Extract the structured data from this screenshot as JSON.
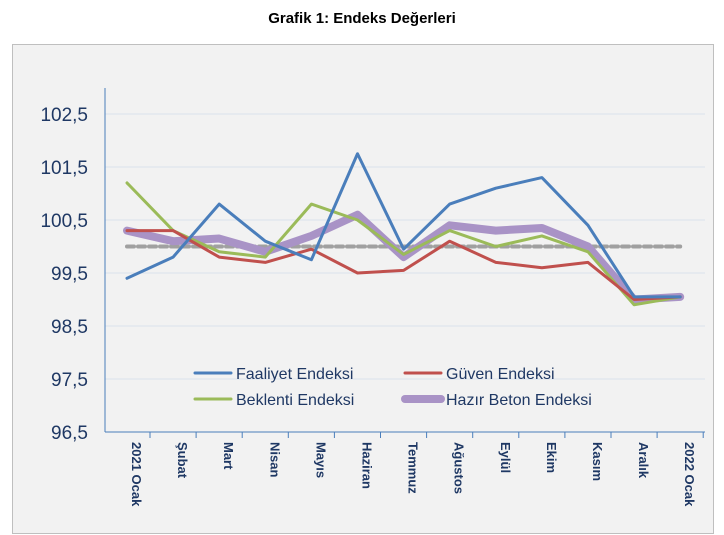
{
  "chart_data": {
    "type": "line",
    "title": "Grafik 1: Endeks Değerleri",
    "categories": [
      "2021 Ocak",
      "Şubat",
      "Mart",
      "Nisan",
      "Mayıs",
      "Haziran",
      "Temmuz",
      "Ağustos",
      "Eylül",
      "Ekim",
      "Kasım",
      "Aralık",
      "2022 Ocak"
    ],
    "ylim": [
      96.5,
      102.5
    ],
    "yticks": [
      "102,5",
      "101,5",
      "100,5",
      "99,5",
      "98,5",
      "97,5",
      "96,5"
    ],
    "grid": true,
    "legend": "inside-bottom",
    "reference_line": 100,
    "series": [
      {
        "name": "Faaliyet Endeksi",
        "color": "#4a7ebb",
        "values": [
          99.4,
          99.8,
          100.8,
          100.1,
          99.75,
          101.75,
          99.95,
          100.8,
          101.1,
          101.3,
          100.4,
          99.05,
          99.05
        ]
      },
      {
        "name": "Güven Endeksi",
        "color": "#c0504d",
        "values": [
          100.3,
          100.3,
          99.8,
          99.7,
          99.95,
          99.5,
          99.55,
          100.1,
          99.7,
          99.6,
          99.7,
          99.0,
          99.05
        ]
      },
      {
        "name": "Beklenti Endeksi",
        "color": "#9bbb59",
        "values": [
          101.2,
          100.3,
          99.9,
          99.8,
          100.8,
          100.5,
          99.85,
          100.3,
          100.0,
          100.2,
          99.9,
          98.9,
          99.05
        ]
      },
      {
        "name": "Hazır Beton Endeksi",
        "color": "#a993c6",
        "values": [
          100.3,
          100.1,
          100.15,
          99.9,
          100.2,
          100.6,
          99.8,
          100.4,
          100.3,
          100.35,
          100.0,
          99.0,
          99.05
        ]
      }
    ]
  }
}
